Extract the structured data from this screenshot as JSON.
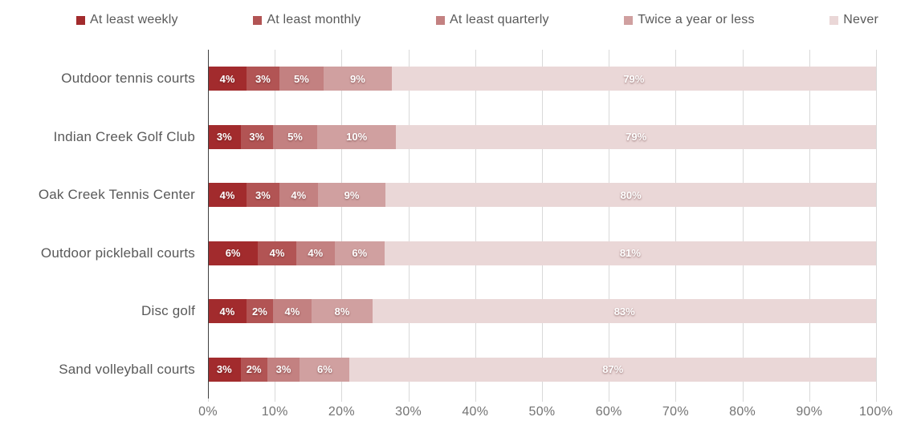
{
  "chart_data": {
    "type": "bar",
    "orientation": "horizontal",
    "stacked": true,
    "grid": true,
    "legend_position": "top",
    "xlim": [
      0,
      100
    ],
    "x_ticks": [
      "0%",
      "10%",
      "20%",
      "30%",
      "40%",
      "50%",
      "60%",
      "70%",
      "80%",
      "90%",
      "100%"
    ],
    "categories": [
      "Outdoor tennis courts",
      "Indian Creek Golf Club",
      "Oak Creek Tennis Center",
      "Outdoor pickleball courts",
      "Disc golf",
      "Sand volleyball courts"
    ],
    "series": [
      {
        "name": "At least weekly",
        "color": "#a22b2d",
        "values": [
          4,
          3,
          4,
          6,
          4,
          3
        ]
      },
      {
        "name": "At least monthly",
        "color": "#b25454",
        "values": [
          3,
          3,
          3,
          4,
          2,
          2
        ]
      },
      {
        "name": "At least quarterly",
        "color": "#c38181",
        "values": [
          5,
          5,
          4,
          4,
          4,
          3
        ]
      },
      {
        "name": "Twice a year or less",
        "color": "#d0a0a0",
        "values": [
          9,
          10,
          9,
          6,
          8,
          6
        ]
      },
      {
        "name": "Never",
        "color": "#ead7d7",
        "values": [
          79,
          79,
          80,
          81,
          83,
          87
        ]
      }
    ],
    "data_label_suffix": "%"
  },
  "colors": {
    "gridline": "#d9d9d9",
    "axis_line": "#404040",
    "tick_label": "#737373",
    "category_label": "#595959",
    "legend_label": "#595959",
    "data_label": "#ffffff"
  }
}
